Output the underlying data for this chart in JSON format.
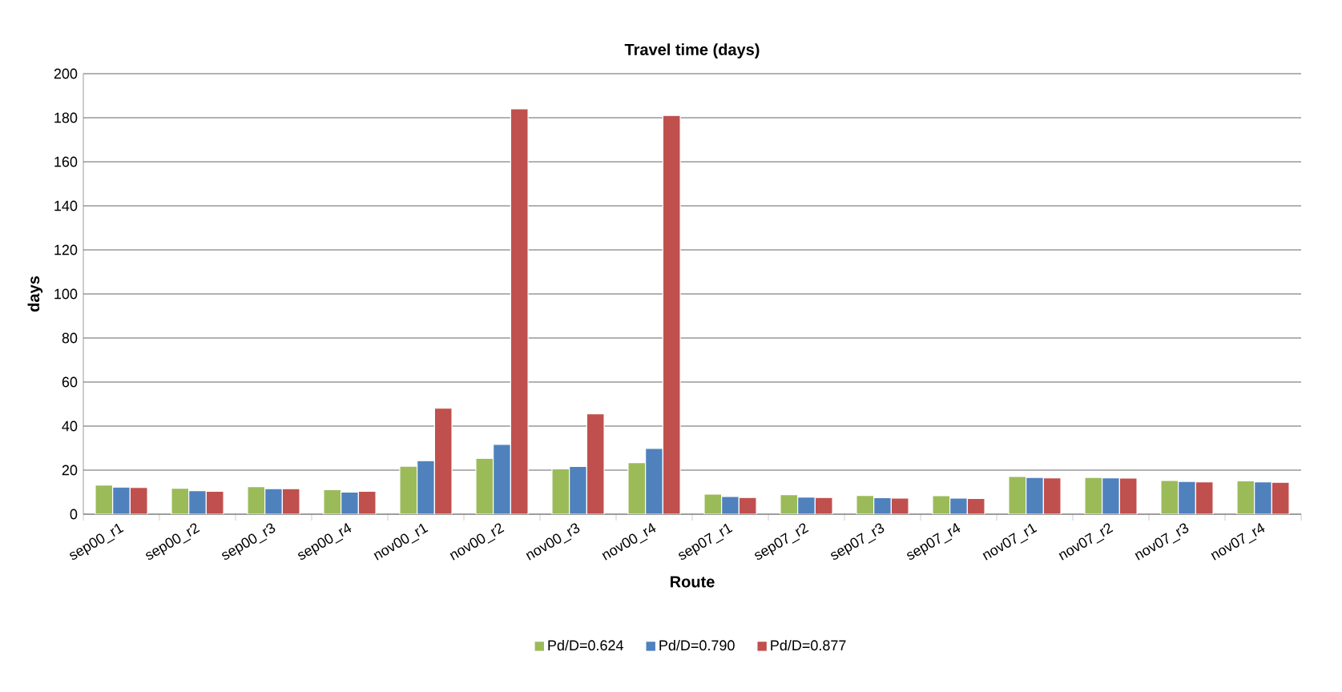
{
  "chart_data": {
    "type": "bar",
    "title": "Travel time (days)",
    "xlabel": "Route",
    "ylabel": "days",
    "categories": [
      "sep00_r1",
      "sep00_r2",
      "sep00_r3",
      "sep00_r4",
      "nov00_r1",
      "nov00_r2",
      "nov00_r3",
      "nov00_r4",
      "sep07_r1",
      "sep07_r2",
      "sep07_r3",
      "sep07_r4",
      "nov07_r1",
      "nov07_r2",
      "nov07_r3",
      "nov07_r4"
    ],
    "series": [
      {
        "name": "Pd/D=0.624",
        "color": "#9bbb59",
        "values": [
          13.2,
          11.8,
          12.5,
          11.1,
          21.8,
          25.4,
          20.6,
          23.4,
          9.1,
          8.9,
          8.5,
          8.4,
          17.1,
          16.7,
          15.3,
          15.1
        ]
      },
      {
        "name": "Pd/D=0.790",
        "color": "#4f81bd",
        "values": [
          12.3,
          10.7,
          11.6,
          10.0,
          24.3,
          31.7,
          21.7,
          29.9,
          8.0,
          7.8,
          7.5,
          7.3,
          16.7,
          16.5,
          14.9,
          14.7
        ]
      },
      {
        "name": "Pd/D=0.877",
        "color": "#c0504d",
        "values": [
          12.1,
          10.4,
          11.6,
          10.4,
          48.1,
          184,
          45.6,
          181,
          7.6,
          7.6,
          7.3,
          7.1,
          16.5,
          16.4,
          14.7,
          14.5
        ]
      }
    ],
    "ylim": [
      0,
      200
    ],
    "yticks": [
      0,
      20,
      40,
      60,
      80,
      100,
      120,
      140,
      160,
      180,
      200
    ],
    "grid": "y",
    "legend": "bottom"
  }
}
